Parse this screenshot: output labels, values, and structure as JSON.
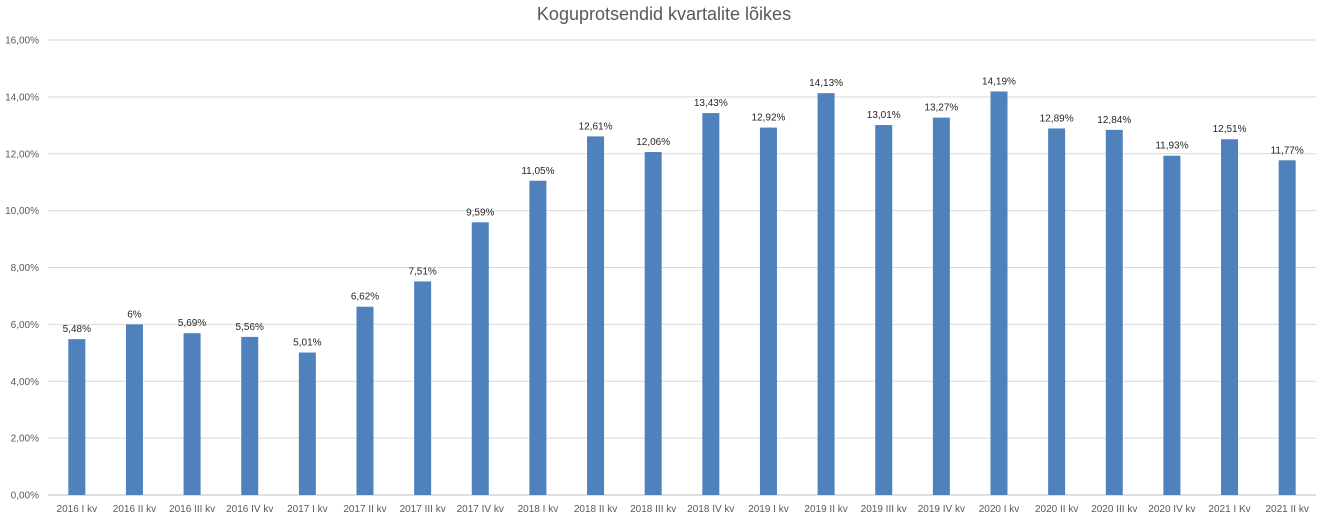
{
  "chart_data": {
    "type": "bar",
    "title": "Koguprotsendid kvartalite lõikes",
    "xlabel": "",
    "ylabel": "",
    "ylim": [
      0,
      16
    ],
    "y_ticks": [
      "0,00%",
      "2,00%",
      "4,00%",
      "6,00%",
      "8,00%",
      "10,00%",
      "12,00%",
      "14,00%",
      "16,00%"
    ],
    "grid": true,
    "legend": "none",
    "bar_color": "#4f81bd",
    "categories": [
      "2016 I kv",
      "2016 II kv",
      "2016 III kv",
      "2016 IV kv",
      "2017 I kv",
      "2017 II kv",
      "2017 III kv",
      "2017 IV kv",
      "2018 I kv",
      "2018 II kv",
      "2018 III kv",
      "2018 IV kv",
      "2019 I kv",
      "2019 II kv",
      "2019 III kv",
      "2019 IV kv",
      "2020 I kv",
      "2020 II kv",
      "2020 III kv",
      "2020 IV kv",
      "2021 I Kv",
      "2021 II kv"
    ],
    "values": [
      5.48,
      6,
      5.69,
      5.56,
      5.01,
      6.62,
      7.51,
      9.59,
      11.05,
      12.61,
      12.06,
      13.43,
      12.92,
      14.13,
      13.01,
      13.27,
      14.19,
      12.89,
      12.84,
      11.93,
      12.51,
      11.77
    ],
    "data_labels": [
      "5,48%",
      "6%",
      "5,69%",
      "5,56%",
      "5,01%",
      "6,62%",
      "7,51%",
      "9,59%",
      "11,05%",
      "12,61%",
      "12,06%",
      "13,43%",
      "12,92%",
      "14,13%",
      "13,01%",
      "13,27%",
      "14,19%",
      "12,89%",
      "12,84%",
      "11,93%",
      "12,51%",
      "11,77%"
    ]
  }
}
